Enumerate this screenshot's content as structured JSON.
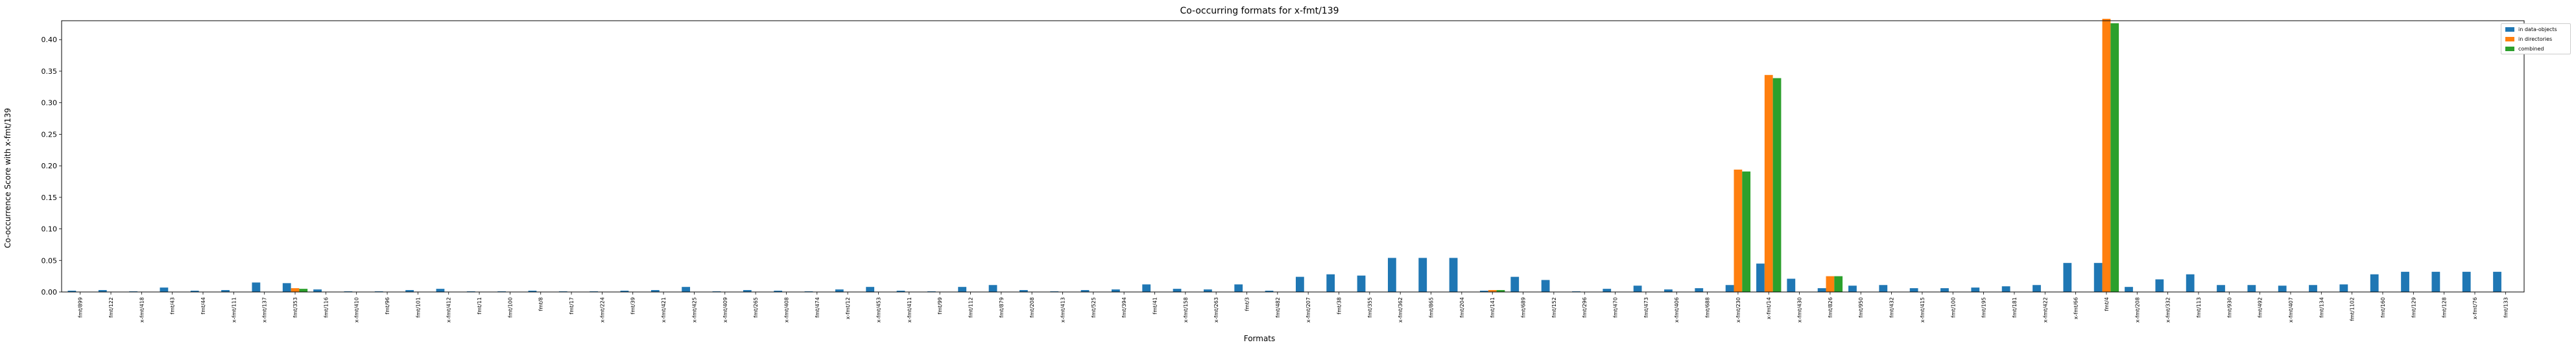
{
  "chart_data": {
    "type": "bar",
    "title": "Co-occurring formats for x-fmt/139",
    "xlabel": "Formats",
    "ylabel": "Co-occurrence Score with x-fmt/139",
    "ylim": [
      0,
      0.43
    ],
    "yticks": [
      "0.00",
      "0.05",
      "0.10",
      "0.15",
      "0.20",
      "0.25",
      "0.30",
      "0.35",
      "0.40"
    ],
    "legend_position": "top-right",
    "grid": false,
    "categories": [
      "fmt/899",
      "fmt/122",
      "x-fmt/418",
      "fmt/43",
      "fmt/44",
      "x-fmt/111",
      "x-fmt/137",
      "fmt/353",
      "fmt/116",
      "x-fmt/410",
      "fmt/96",
      "fmt/101",
      "x-fmt/412",
      "fmt/11",
      "fmt/100",
      "fmt/8",
      "fmt/17",
      "x-fmt/224",
      "fmt/39",
      "x-fmt/421",
      "x-fmt/425",
      "x-fmt/409",
      "fmt/265",
      "x-fmt/408",
      "fmt/474",
      "x-fmt/12",
      "x-fmt/453",
      "x-fmt/411",
      "fmt/99",
      "fmt/112",
      "fmt/879",
      "fmt/208",
      "x-fmt/413",
      "fmt/525",
      "fmt/394",
      "fmt/41",
      "x-fmt/158",
      "x-fmt/263",
      "fmt/3",
      "fmt/482",
      "x-fmt/207",
      "fmt/38",
      "fmt/355",
      "x-fmt/362",
      "fmt/865",
      "fmt/204",
      "fmt/141",
      "fmt/689",
      "fmt/152",
      "fmt/296",
      "fmt/470",
      "fmt/473",
      "x-fmt/406",
      "fmt/688",
      "x-fmt/230",
      "x-fmt/14",
      "x-fmt/430",
      "fmt/826",
      "fmt/950",
      "fmt/432",
      "x-fmt/415",
      "fmt/100",
      "fmt/195",
      "fmt/181",
      "x-fmt/422",
      "x-fmt/66",
      "fmt/4",
      "x-fmt/208",
      "x-fmt/332",
      "fmt/113",
      "fmt/930",
      "fmt/492",
      "x-fmt/407",
      "fmt/134",
      "fmt/1102",
      "fmt/160",
      "fmt/129",
      "fmt/128",
      "x-fmt/76",
      "fmt/133"
    ],
    "series": [
      {
        "name": "in data-objects",
        "color": "#1f77b4",
        "values": [
          0.002,
          0.003,
          0.001,
          0.007,
          0.002,
          0.003,
          0.015,
          0.014,
          0.004,
          0.001,
          0.001,
          0.003,
          0.005,
          0.001,
          0.001,
          0.002,
          0.001,
          0.001,
          0.002,
          0.003,
          0.008,
          0.001,
          0.003,
          0.002,
          0.001,
          0.004,
          0.008,
          0.002,
          0.001,
          0.008,
          0.011,
          0.003,
          0.001,
          0.003,
          0.004,
          0.012,
          0.005,
          0.004,
          0.012,
          0.002,
          0.024,
          0.028,
          0.026,
          0.054,
          0.054,
          0.054,
          0.002,
          0.024,
          0.019,
          0.001,
          0.005,
          0.01,
          0.004,
          0.006,
          0.011,
          0.045,
          0.021,
          0.006,
          0.01,
          0.011,
          0.006,
          0.006,
          0.007,
          0.009,
          0.011,
          0.046,
          0.046,
          0.008,
          0.02,
          0.028,
          0.011,
          0.011,
          0.01,
          0.011,
          0.012,
          0.028,
          0.032,
          0.032,
          0.032,
          0.032
        ]
      },
      {
        "name": "in directories",
        "color": "#ff7f0e",
        "values": [
          0,
          0,
          0,
          0,
          0,
          0,
          0,
          0.006,
          0,
          0,
          0,
          0,
          0,
          0,
          0,
          0,
          0,
          0,
          0,
          0,
          0,
          0,
          0,
          0,
          0,
          0,
          0,
          0,
          0,
          0,
          0,
          0,
          0,
          0,
          0,
          0,
          0,
          0,
          0,
          0,
          0,
          0,
          0,
          0,
          0,
          0,
          0.003,
          0,
          0,
          0,
          0,
          0,
          0,
          0,
          0.194,
          0.344,
          0,
          0.025,
          0,
          0,
          0,
          0,
          0,
          0,
          0,
          0,
          0.433,
          0,
          0,
          0,
          0,
          0,
          0,
          0,
          0,
          0,
          0,
          0,
          0,
          0
        ]
      },
      {
        "name": "combined",
        "color": "#2ca02c",
        "values": [
          0,
          0,
          0,
          0,
          0,
          0,
          0,
          0.005,
          0,
          0,
          0,
          0,
          0,
          0,
          0,
          0,
          0,
          0,
          0,
          0,
          0,
          0,
          0,
          0,
          0,
          0,
          0,
          0,
          0,
          0,
          0,
          0,
          0,
          0,
          0,
          0,
          0,
          0,
          0,
          0,
          0,
          0,
          0,
          0,
          0,
          0,
          0.003,
          0,
          0,
          0,
          0,
          0,
          0,
          0,
          0.191,
          0.339,
          0,
          0.025,
          0,
          0,
          0,
          0,
          0,
          0,
          0,
          0,
          0.426,
          0,
          0,
          0,
          0,
          0,
          0,
          0,
          0,
          0,
          0,
          0,
          0,
          0
        ]
      }
    ]
  }
}
